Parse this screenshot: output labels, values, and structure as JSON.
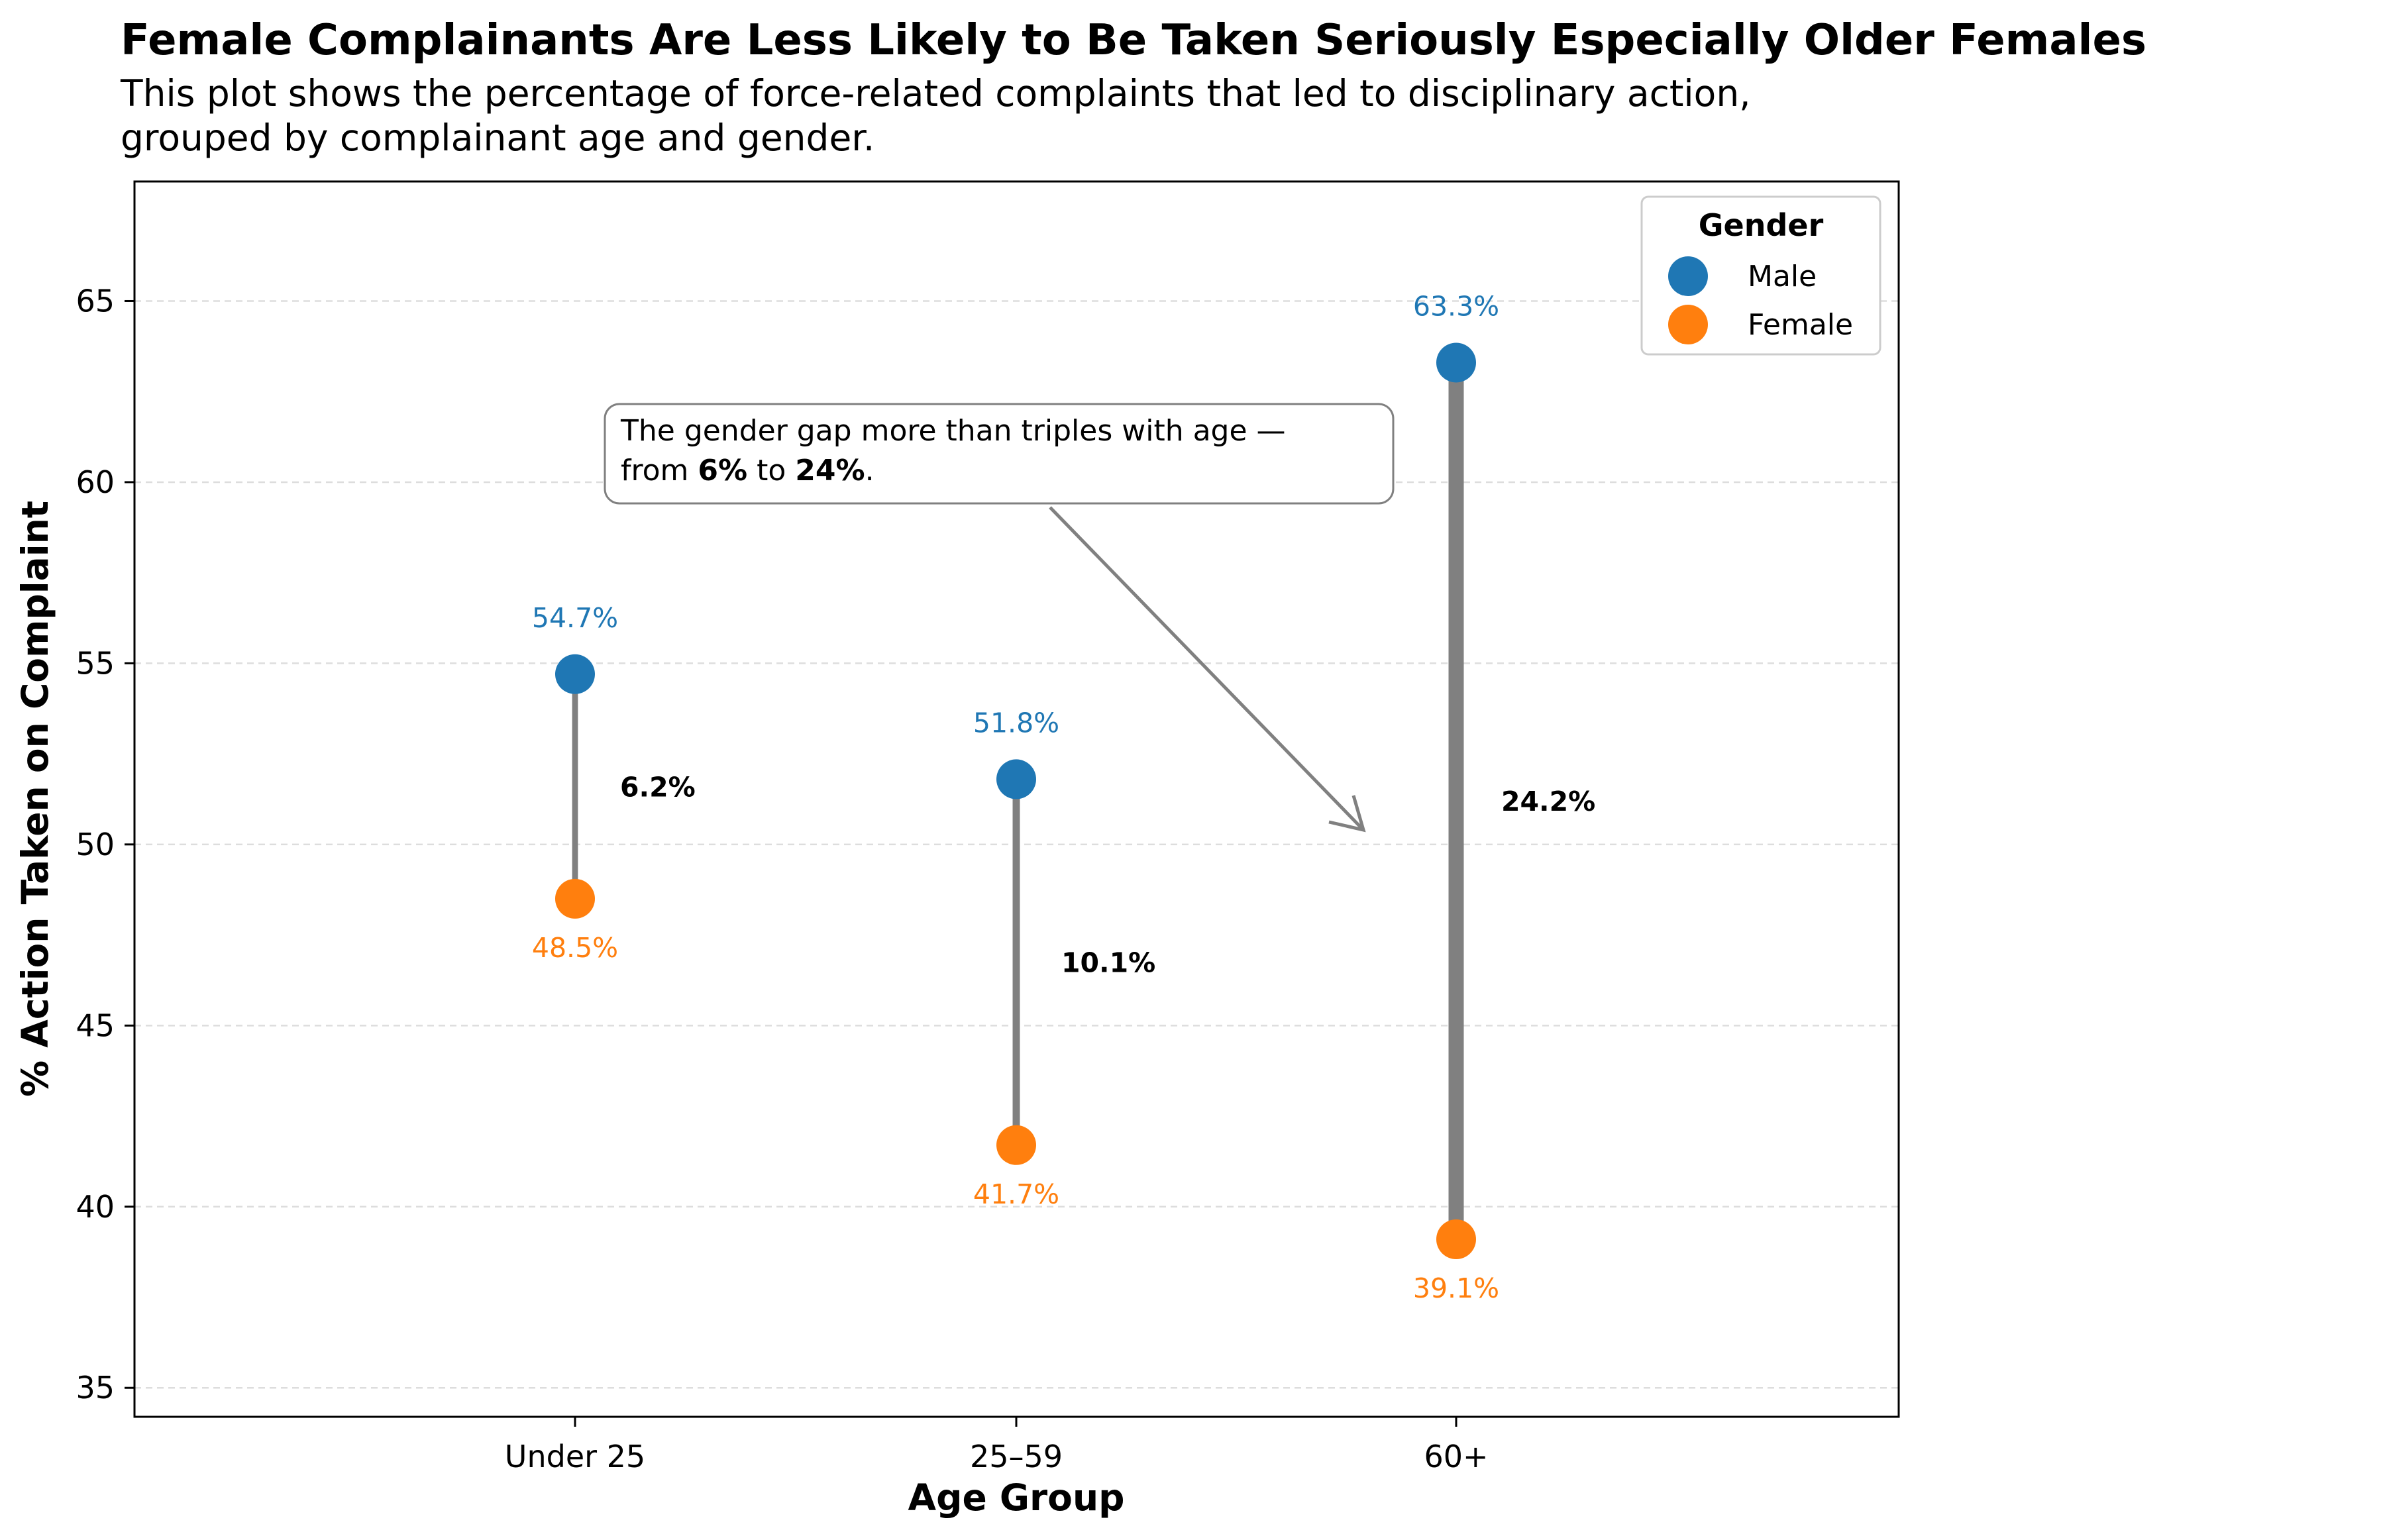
{
  "chart_data": {
    "type": "dumbbell",
    "title": "Female Complainants Are Less Likely to Be Taken Seriously Especially Older Females",
    "subtitle_lines": [
      "This plot shows the percentage of force-related complaints that led to disciplinary action,",
      "grouped by complainant age and gender."
    ],
    "xlabel": "Age Group",
    "ylabel": "% Action Taken on Complaint",
    "categories": [
      "Under 25",
      "25–59",
      "60+"
    ],
    "series": [
      {
        "name": "Male",
        "color": "#1f77b4",
        "values": [
          54.7,
          51.8,
          63.3
        ],
        "labels": [
          "54.7%",
          "51.8%",
          "63.3%"
        ]
      },
      {
        "name": "Female",
        "color": "#ff7f0e",
        "values": [
          48.5,
          41.7,
          39.1
        ],
        "labels": [
          "48.5%",
          "41.7%",
          "39.1%"
        ]
      }
    ],
    "gaps": [
      6.2,
      10.1,
      24.2
    ],
    "gap_labels": [
      "6.2%",
      "10.1%",
      "24.2%"
    ],
    "connector_color": "#808080",
    "ylim": [
      34.2,
      68.3
    ],
    "yticks": [
      35,
      40,
      45,
      50,
      55,
      60,
      65
    ],
    "ytick_labels": [
      "35",
      "40",
      "45",
      "50",
      "55",
      "60",
      "65"
    ],
    "grid": "horizontal dashed",
    "legend": {
      "title": "Gender",
      "position": "top-right",
      "entries": [
        "Male",
        "Female"
      ]
    },
    "annotation": {
      "line1": "The gender gap more than triples with age —",
      "line2_prefix": "from ",
      "line2_bold1": "6%",
      "line2_mid": " to ",
      "line2_bold2": "24%",
      "line2_suffix": "."
    }
  }
}
